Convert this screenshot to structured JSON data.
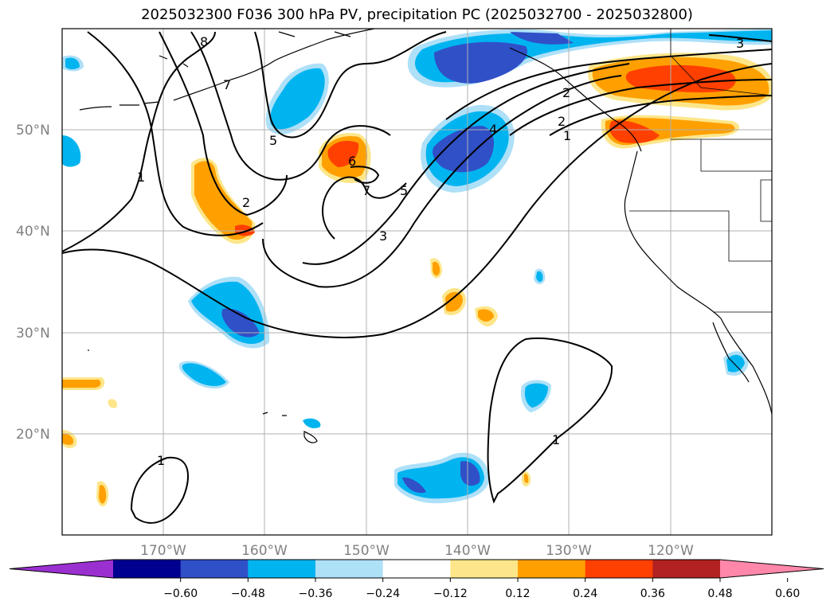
{
  "title": "2025032300 F036 300 hPa PV, precipitation PC (2025032700 - 2025032800)",
  "map": {
    "projection": "PlateCarree",
    "lon_range": [
      -180,
      -110
    ],
    "lat_range": [
      10,
      60
    ],
    "lat_ticks": [
      "20°N",
      "30°N",
      "40°N",
      "50°N"
    ],
    "lon_ticks": [
      "170°W",
      "160°W",
      "150°W",
      "140°W",
      "130°W",
      "120°W"
    ],
    "grid": true,
    "pv_contour_labels": [
      "8",
      "5",
      "1",
      "2",
      "6",
      "7",
      "5",
      "3",
      "4",
      "2",
      "1",
      "3",
      "1",
      "1",
      "2",
      "7"
    ]
  },
  "colorbar": {
    "ticks": [
      "−0.60",
      "−0.48",
      "−0.36",
      "−0.24",
      "−0.12",
      "0.12",
      "0.24",
      "0.36",
      "0.48",
      "0.60"
    ],
    "colors": [
      "#9b30d0",
      "#000090",
      "#3050c8",
      "#00b4f0",
      "#aee0f8",
      "#ffffff",
      "#fde68a",
      "#ffa000",
      "#ff4000",
      "#b22222",
      "#ff88aa"
    ],
    "extend": "both"
  }
}
